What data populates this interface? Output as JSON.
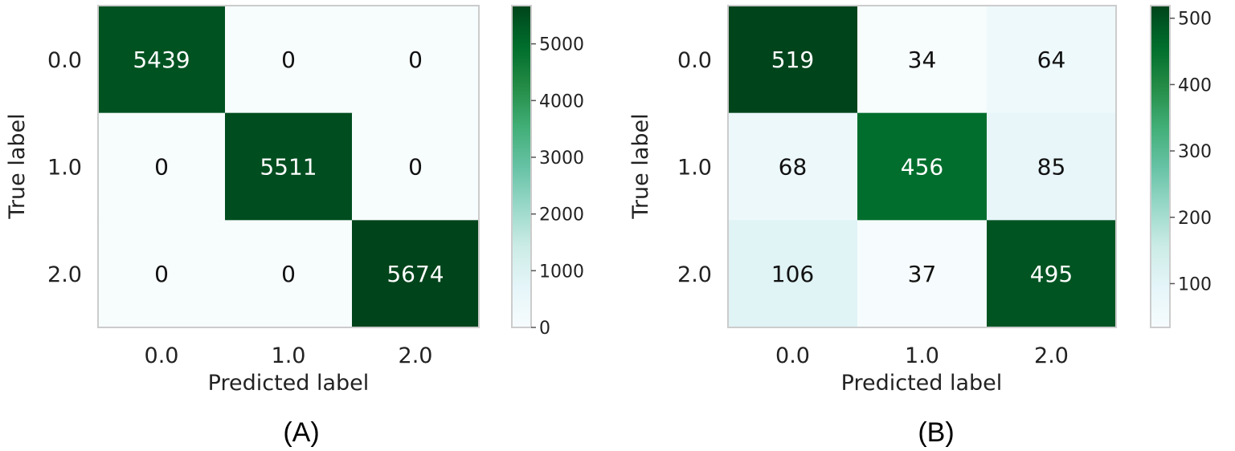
{
  "chart_data": [
    {
      "type": "heatmap",
      "panel_label": "(A)",
      "xlabel": "Predicted label",
      "ylabel": "True label",
      "x_categories": [
        "0.0",
        "1.0",
        "2.0"
      ],
      "y_categories": [
        "0.0",
        "1.0",
        "2.0"
      ],
      "matrix": [
        [
          5439,
          0,
          0
        ],
        [
          0,
          5511,
          0
        ],
        [
          0,
          0,
          5674
        ]
      ],
      "colorbar": {
        "range": [
          0,
          5674
        ],
        "ticks": [
          0,
          1000,
          2000,
          3000,
          4000,
          5000
        ]
      },
      "colormap": "BuGn",
      "grid": false
    },
    {
      "type": "heatmap",
      "panel_label": "(B)",
      "xlabel": "Predicted label",
      "ylabel": "True label",
      "x_categories": [
        "0.0",
        "1.0",
        "2.0"
      ],
      "y_categories": [
        "0.0",
        "1.0",
        "2.0"
      ],
      "matrix": [
        [
          519,
          34,
          64
        ],
        [
          68,
          456,
          85
        ],
        [
          106,
          37,
          495
        ]
      ],
      "colorbar": {
        "range": [
          34,
          519
        ],
        "ticks": [
          100,
          200,
          300,
          400,
          500
        ]
      },
      "colormap": "BuGn",
      "grid": false
    }
  ]
}
